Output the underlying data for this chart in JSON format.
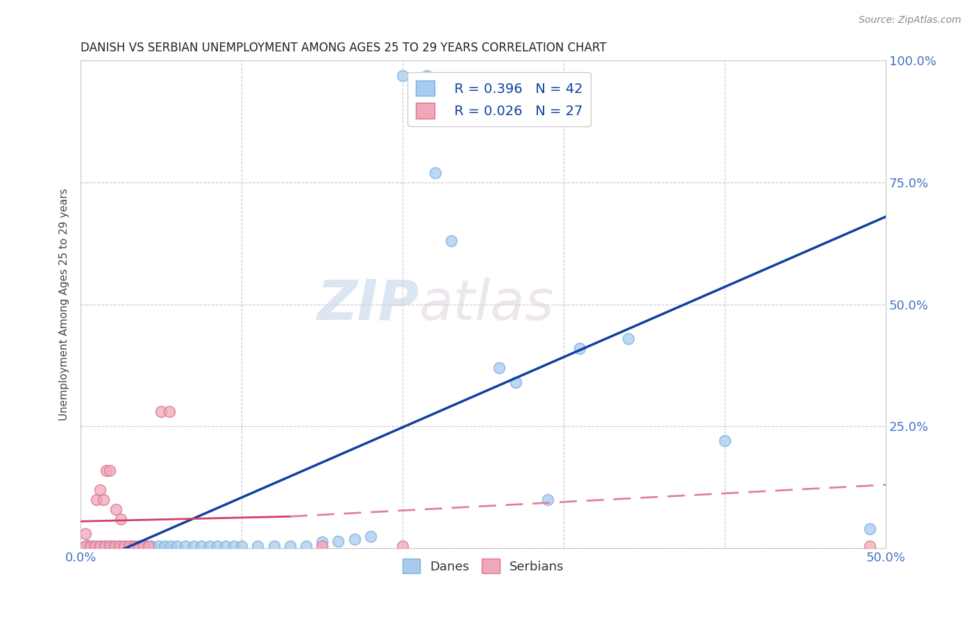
{
  "title": "DANISH VS SERBIAN UNEMPLOYMENT AMONG AGES 25 TO 29 YEARS CORRELATION CHART",
  "source": "Source: ZipAtlas.com",
  "ylabel": "Unemployment Among Ages 25 to 29 years",
  "xlim": [
    0.0,
    0.5
  ],
  "ylim": [
    0.0,
    1.0
  ],
  "xticks": [
    0.0,
    0.1,
    0.2,
    0.3,
    0.4,
    0.5
  ],
  "yticks": [
    0.0,
    0.25,
    0.5,
    0.75,
    1.0
  ],
  "watermark_zip": "ZIP",
  "watermark_atlas": "atlas",
  "legend_R_danes": "R = 0.396",
  "legend_N_danes": "N = 42",
  "legend_R_serbians": "R = 0.026",
  "legend_N_serbians": "N = 27",
  "danes_color": "#A8CCF0",
  "serbians_color": "#F0A8B8",
  "danes_edge_color": "#7AAEE0",
  "serbians_edge_color": "#E07090",
  "danes_line_color": "#1040A0",
  "serbians_line_solid_color": "#D04060",
  "serbians_line_dashed_color": "#E080A0",
  "danes_scatter": [
    [
      0.004,
      0.005
    ],
    [
      0.008,
      0.004
    ],
    [
      0.012,
      0.004
    ],
    [
      0.016,
      0.004
    ],
    [
      0.02,
      0.004
    ],
    [
      0.024,
      0.004
    ],
    [
      0.028,
      0.004
    ],
    [
      0.032,
      0.004
    ],
    [
      0.036,
      0.004
    ],
    [
      0.04,
      0.004
    ],
    [
      0.044,
      0.004
    ],
    [
      0.048,
      0.004
    ],
    [
      0.052,
      0.004
    ],
    [
      0.056,
      0.004
    ],
    [
      0.06,
      0.004
    ],
    [
      0.065,
      0.004
    ],
    [
      0.07,
      0.004
    ],
    [
      0.075,
      0.004
    ],
    [
      0.08,
      0.004
    ],
    [
      0.085,
      0.004
    ],
    [
      0.09,
      0.004
    ],
    [
      0.095,
      0.004
    ],
    [
      0.1,
      0.004
    ],
    [
      0.11,
      0.004
    ],
    [
      0.12,
      0.004
    ],
    [
      0.13,
      0.004
    ],
    [
      0.14,
      0.004
    ],
    [
      0.15,
      0.012
    ],
    [
      0.16,
      0.014
    ],
    [
      0.17,
      0.018
    ],
    [
      0.18,
      0.024
    ],
    [
      0.2,
      0.97
    ],
    [
      0.215,
      0.97
    ],
    [
      0.22,
      0.77
    ],
    [
      0.23,
      0.63
    ],
    [
      0.26,
      0.37
    ],
    [
      0.27,
      0.34
    ],
    [
      0.29,
      0.1
    ],
    [
      0.31,
      0.41
    ],
    [
      0.34,
      0.43
    ],
    [
      0.4,
      0.22
    ],
    [
      0.49,
      0.04
    ]
  ],
  "serbians_scatter": [
    [
      0.003,
      0.004
    ],
    [
      0.006,
      0.004
    ],
    [
      0.009,
      0.004
    ],
    [
      0.012,
      0.004
    ],
    [
      0.015,
      0.004
    ],
    [
      0.018,
      0.004
    ],
    [
      0.021,
      0.004
    ],
    [
      0.024,
      0.004
    ],
    [
      0.027,
      0.004
    ],
    [
      0.03,
      0.004
    ],
    [
      0.033,
      0.004
    ],
    [
      0.036,
      0.004
    ],
    [
      0.039,
      0.004
    ],
    [
      0.042,
      0.004
    ],
    [
      0.003,
      0.03
    ],
    [
      0.01,
      0.1
    ],
    [
      0.012,
      0.12
    ],
    [
      0.014,
      0.1
    ],
    [
      0.016,
      0.16
    ],
    [
      0.018,
      0.16
    ],
    [
      0.022,
      0.08
    ],
    [
      0.025,
      0.06
    ],
    [
      0.05,
      0.28
    ],
    [
      0.055,
      0.28
    ],
    [
      0.15,
      0.004
    ],
    [
      0.2,
      0.004
    ],
    [
      0.49,
      0.004
    ]
  ],
  "danes_line": [
    [
      0.0,
      -0.04
    ],
    [
      0.5,
      0.68
    ]
  ],
  "serbians_line_solid": [
    [
      0.0,
      0.055
    ],
    [
      0.13,
      0.065
    ]
  ],
  "serbians_line_dashed": [
    [
      0.13,
      0.065
    ],
    [
      0.5,
      0.13
    ]
  ]
}
